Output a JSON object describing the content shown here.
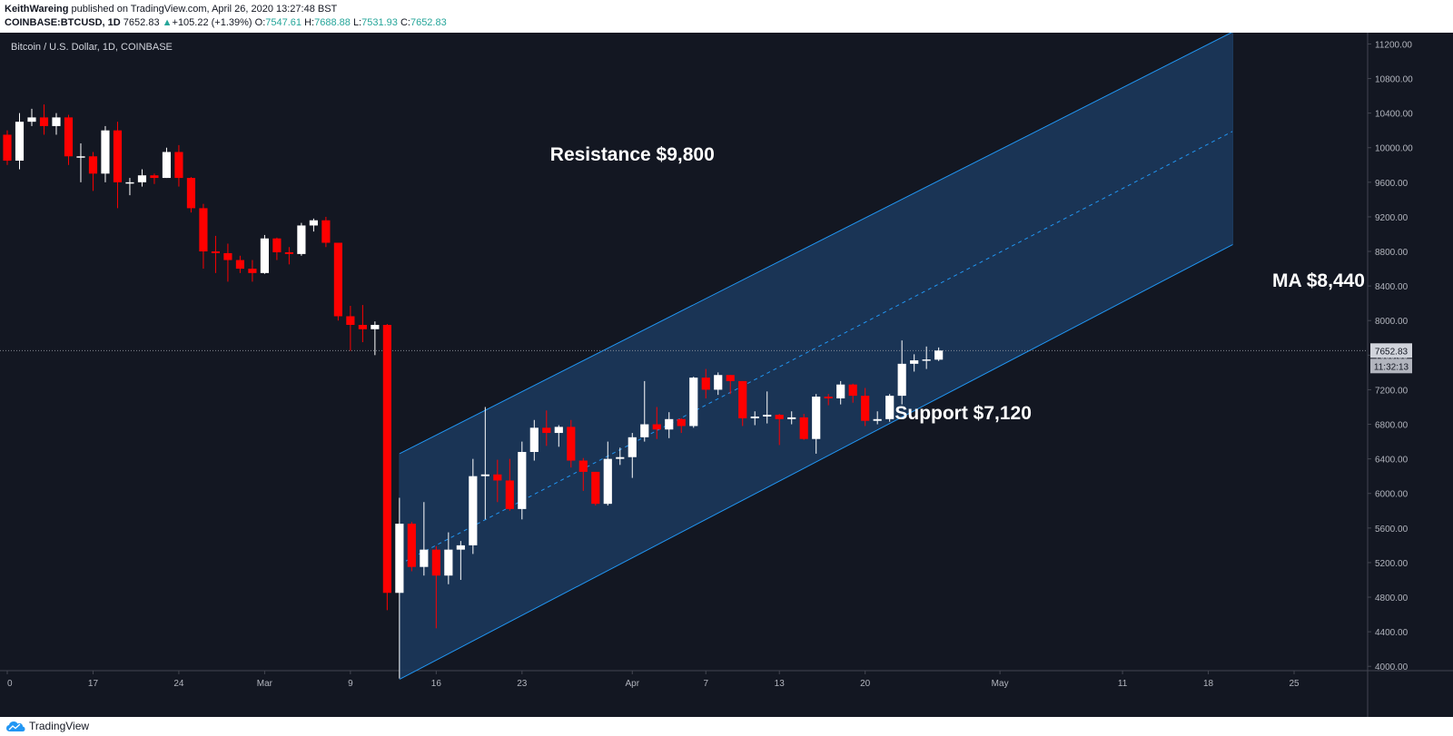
{
  "header": {
    "author": "KeithWareing",
    "published_text": " published on TradingView.com, April 26, 2020 13:27:48 BST",
    "symbol_line": "COINBASE:BTCUSD, 1D",
    "last": "7652.83",
    "change_arrow": "▲",
    "change": "+105.22 (+1.39%)",
    "o_label": "O:",
    "o": "7547.61",
    "h_label": "H:",
    "h": "7688.88",
    "l_label": "L:",
    "l": "7531.93",
    "c_label": "C:",
    "c": "7652.83"
  },
  "footer": {
    "brand": "TradingView"
  },
  "colors": {
    "background": "#131722",
    "up": "#ffffff",
    "down": "#ff0000",
    "channel_line": "#2196f3",
    "channel_fill": "#1c3a5e",
    "axis_text": "#b2b5be",
    "annotation": "#ffffff"
  },
  "chart_data": {
    "type": "candlestick",
    "title": "Bitcoin / U.S. Dollar, 1D, COINBASE",
    "ylim": [
      3950,
      11320
    ],
    "y_ticks": [
      4000,
      4400,
      4800,
      5200,
      5600,
      6000,
      6400,
      6800,
      7200,
      7600,
      8000,
      8400,
      8800,
      9200,
      9600,
      10000,
      10400,
      10800,
      11200
    ],
    "x_tick_labels": [
      {
        "label": "0",
        "date": "2020-02-10"
      },
      {
        "label": "17",
        "date": "2020-02-17"
      },
      {
        "label": "24",
        "date": "2020-02-24"
      },
      {
        "label": "Mar",
        "date": "2020-03-02"
      },
      {
        "label": "9",
        "date": "2020-03-09"
      },
      {
        "label": "16",
        "date": "2020-03-16"
      },
      {
        "label": "23",
        "date": "2020-03-23"
      },
      {
        "label": "Apr",
        "date": "2020-04-01"
      },
      {
        "label": "7",
        "date": "2020-04-07"
      },
      {
        "label": "13",
        "date": "2020-04-13"
      },
      {
        "label": "20",
        "date": "2020-04-20"
      },
      {
        "label": "May",
        "date": "2020-05-01"
      },
      {
        "label": "11",
        "date": "2020-05-11"
      },
      {
        "label": "18",
        "date": "2020-05-18"
      },
      {
        "label": "25",
        "date": "2020-05-25"
      }
    ],
    "x_range": [
      "2020-02-10",
      "2020-05-31"
    ],
    "last_price": 7652.83,
    "last_price_label": "7652.83",
    "countdown_label": "11:32:13",
    "candles": [
      {
        "date": "2020-02-10",
        "o": 10150,
        "h": 10200,
        "l": 9800,
        "c": 9850
      },
      {
        "date": "2020-02-11",
        "o": 9850,
        "h": 10400,
        "l": 9750,
        "c": 10300
      },
      {
        "date": "2020-02-12",
        "o": 10300,
        "h": 10450,
        "l": 10250,
        "c": 10350
      },
      {
        "date": "2020-02-13",
        "o": 10350,
        "h": 10500,
        "l": 10150,
        "c": 10250
      },
      {
        "date": "2020-02-14",
        "o": 10250,
        "h": 10400,
        "l": 10150,
        "c": 10350
      },
      {
        "date": "2020-02-15",
        "o": 10350,
        "h": 10380,
        "l": 9800,
        "c": 9900
      },
      {
        "date": "2020-02-16",
        "o": 9900,
        "h": 10050,
        "l": 9600,
        "c": 9900
      },
      {
        "date": "2020-02-17",
        "o": 9900,
        "h": 9950,
        "l": 9500,
        "c": 9700
      },
      {
        "date": "2020-02-18",
        "o": 9700,
        "h": 10250,
        "l": 9600,
        "c": 10200
      },
      {
        "date": "2020-02-19",
        "o": 10200,
        "h": 10300,
        "l": 9300,
        "c": 9600
      },
      {
        "date": "2020-02-20",
        "o": 9600,
        "h": 9650,
        "l": 9450,
        "c": 9600
      },
      {
        "date": "2020-02-21",
        "o": 9600,
        "h": 9750,
        "l": 9550,
        "c": 9680
      },
      {
        "date": "2020-02-22",
        "o": 9680,
        "h": 9700,
        "l": 9580,
        "c": 9650
      },
      {
        "date": "2020-02-23",
        "o": 9650,
        "h": 10000,
        "l": 9650,
        "c": 9950
      },
      {
        "date": "2020-02-24",
        "o": 9950,
        "h": 10030,
        "l": 9550,
        "c": 9650
      },
      {
        "date": "2020-02-25",
        "o": 9650,
        "h": 9660,
        "l": 9250,
        "c": 9300
      },
      {
        "date": "2020-02-26",
        "o": 9300,
        "h": 9350,
        "l": 8600,
        "c": 8800
      },
      {
        "date": "2020-02-27",
        "o": 8800,
        "h": 8980,
        "l": 8550,
        "c": 8780
      },
      {
        "date": "2020-02-28",
        "o": 8780,
        "h": 8890,
        "l": 8450,
        "c": 8700
      },
      {
        "date": "2020-02-29",
        "o": 8700,
        "h": 8750,
        "l": 8550,
        "c": 8600
      },
      {
        "date": "2020-03-01",
        "o": 8600,
        "h": 8700,
        "l": 8450,
        "c": 8550
      },
      {
        "date": "2020-03-02",
        "o": 8550,
        "h": 8990,
        "l": 8540,
        "c": 8950
      },
      {
        "date": "2020-03-03",
        "o": 8950,
        "h": 8960,
        "l": 8700,
        "c": 8790
      },
      {
        "date": "2020-03-04",
        "o": 8790,
        "h": 8850,
        "l": 8650,
        "c": 8770
      },
      {
        "date": "2020-03-05",
        "o": 8770,
        "h": 9130,
        "l": 8750,
        "c": 9100
      },
      {
        "date": "2020-03-06",
        "o": 9100,
        "h": 9180,
        "l": 9030,
        "c": 9160
      },
      {
        "date": "2020-03-07",
        "o": 9160,
        "h": 9200,
        "l": 8850,
        "c": 8900
      },
      {
        "date": "2020-03-08",
        "o": 8900,
        "h": 8900,
        "l": 8000,
        "c": 8050
      },
      {
        "date": "2020-03-09",
        "o": 8050,
        "h": 8170,
        "l": 7650,
        "c": 7950
      },
      {
        "date": "2020-03-10",
        "o": 7950,
        "h": 8180,
        "l": 7750,
        "c": 7900
      },
      {
        "date": "2020-03-11",
        "o": 7900,
        "h": 7990,
        "l": 7600,
        "c": 7950
      },
      {
        "date": "2020-03-12",
        "o": 7950,
        "h": 7960,
        "l": 4650,
        "c": 4850
      },
      {
        "date": "2020-03-13",
        "o": 4850,
        "h": 5950,
        "l": 3860,
        "c": 5650
      },
      {
        "date": "2020-03-14",
        "o": 5650,
        "h": 5670,
        "l": 5100,
        "c": 5150
      },
      {
        "date": "2020-03-15",
        "o": 5150,
        "h": 5900,
        "l": 5050,
        "c": 5350
      },
      {
        "date": "2020-03-16",
        "o": 5350,
        "h": 5390,
        "l": 4440,
        "c": 5050
      },
      {
        "date": "2020-03-17",
        "o": 5050,
        "h": 5550,
        "l": 4950,
        "c": 5350
      },
      {
        "date": "2020-03-18",
        "o": 5350,
        "h": 5450,
        "l": 5000,
        "c": 5400
      },
      {
        "date": "2020-03-19",
        "o": 5400,
        "h": 6400,
        "l": 5300,
        "c": 6200
      },
      {
        "date": "2020-03-20",
        "o": 6200,
        "h": 7000,
        "l": 5700,
        "c": 6220
      },
      {
        "date": "2020-03-21",
        "o": 6220,
        "h": 6390,
        "l": 5900,
        "c": 6150
      },
      {
        "date": "2020-03-22",
        "o": 6150,
        "h": 6400,
        "l": 5800,
        "c": 5820
      },
      {
        "date": "2020-03-23",
        "o": 5820,
        "h": 6600,
        "l": 5700,
        "c": 6480
      },
      {
        "date": "2020-03-24",
        "o": 6480,
        "h": 6850,
        "l": 6380,
        "c": 6760
      },
      {
        "date": "2020-03-25",
        "o": 6760,
        "h": 6960,
        "l": 6550,
        "c": 6700
      },
      {
        "date": "2020-03-26",
        "o": 6700,
        "h": 6790,
        "l": 6540,
        "c": 6770
      },
      {
        "date": "2020-03-27",
        "o": 6770,
        "h": 6850,
        "l": 6300,
        "c": 6380
      },
      {
        "date": "2020-03-28",
        "o": 6380,
        "h": 6410,
        "l": 6030,
        "c": 6250
      },
      {
        "date": "2020-03-29",
        "o": 6250,
        "h": 6250,
        "l": 5860,
        "c": 5880
      },
      {
        "date": "2020-03-30",
        "o": 5880,
        "h": 6600,
        "l": 5860,
        "c": 6400
      },
      {
        "date": "2020-03-31",
        "o": 6400,
        "h": 6530,
        "l": 6330,
        "c": 6420
      },
      {
        "date": "2020-04-01",
        "o": 6420,
        "h": 6700,
        "l": 6180,
        "c": 6650
      },
      {
        "date": "2020-04-02",
        "o": 6650,
        "h": 7300,
        "l": 6600,
        "c": 6800
      },
      {
        "date": "2020-04-03",
        "o": 6800,
        "h": 7000,
        "l": 6630,
        "c": 6740
      },
      {
        "date": "2020-04-04",
        "o": 6740,
        "h": 6940,
        "l": 6640,
        "c": 6860
      },
      {
        "date": "2020-04-05",
        "o": 6860,
        "h": 6870,
        "l": 6700,
        "c": 6780
      },
      {
        "date": "2020-04-06",
        "o": 6780,
        "h": 7350,
        "l": 6760,
        "c": 7340
      },
      {
        "date": "2020-04-07",
        "o": 7340,
        "h": 7440,
        "l": 7100,
        "c": 7200
      },
      {
        "date": "2020-04-08",
        "o": 7200,
        "h": 7400,
        "l": 7140,
        "c": 7370
      },
      {
        "date": "2020-04-09",
        "o": 7370,
        "h": 7370,
        "l": 7150,
        "c": 7300
      },
      {
        "date": "2020-04-10",
        "o": 7300,
        "h": 7300,
        "l": 6780,
        "c": 6870
      },
      {
        "date": "2020-04-11",
        "o": 6870,
        "h": 6950,
        "l": 6790,
        "c": 6890
      },
      {
        "date": "2020-04-12",
        "o": 6890,
        "h": 7180,
        "l": 6810,
        "c": 6910
      },
      {
        "date": "2020-04-13",
        "o": 6910,
        "h": 6920,
        "l": 6560,
        "c": 6860
      },
      {
        "date": "2020-04-14",
        "o": 6860,
        "h": 6950,
        "l": 6800,
        "c": 6880
      },
      {
        "date": "2020-04-15",
        "o": 6880,
        "h": 6920,
        "l": 6620,
        "c": 6630
      },
      {
        "date": "2020-04-16",
        "o": 6630,
        "h": 7150,
        "l": 6460,
        "c": 7120
      },
      {
        "date": "2020-04-17",
        "o": 7120,
        "h": 7150,
        "l": 7020,
        "c": 7100
      },
      {
        "date": "2020-04-18",
        "o": 7100,
        "h": 7300,
        "l": 7030,
        "c": 7260
      },
      {
        "date": "2020-04-19",
        "o": 7260,
        "h": 7270,
        "l": 7050,
        "c": 7130
      },
      {
        "date": "2020-04-20",
        "o": 7130,
        "h": 7220,
        "l": 6780,
        "c": 6840
      },
      {
        "date": "2020-04-21",
        "o": 6840,
        "h": 6950,
        "l": 6800,
        "c": 6860
      },
      {
        "date": "2020-04-22",
        "o": 6860,
        "h": 7150,
        "l": 6830,
        "c": 7130
      },
      {
        "date": "2020-04-23",
        "o": 7130,
        "h": 7770,
        "l": 7030,
        "c": 7500
      },
      {
        "date": "2020-04-24",
        "o": 7500,
        "h": 7610,
        "l": 7410,
        "c": 7540
      },
      {
        "date": "2020-04-25",
        "o": 7540,
        "h": 7700,
        "l": 7440,
        "c": 7550
      },
      {
        "date": "2020-04-26",
        "o": 7547.61,
        "h": 7688.88,
        "l": 7531.93,
        "c": 7652.83
      }
    ],
    "channel": {
      "start": {
        "date": "2020-03-13"
      },
      "end": {
        "date": "2020-05-20"
      },
      "upper": [
        6460,
        11340
      ],
      "middle": [
        5180,
        10190
      ],
      "lower": [
        3850,
        8880
      ]
    },
    "annotations": [
      {
        "text": "Resistance $9,800",
        "date": "2020-04-01",
        "price": 9850
      },
      {
        "text": "MA $8,440",
        "date": "2020-05-27",
        "price": 8390
      },
      {
        "text": "Support $7,120",
        "date": "2020-04-28",
        "price": 6860
      }
    ]
  }
}
